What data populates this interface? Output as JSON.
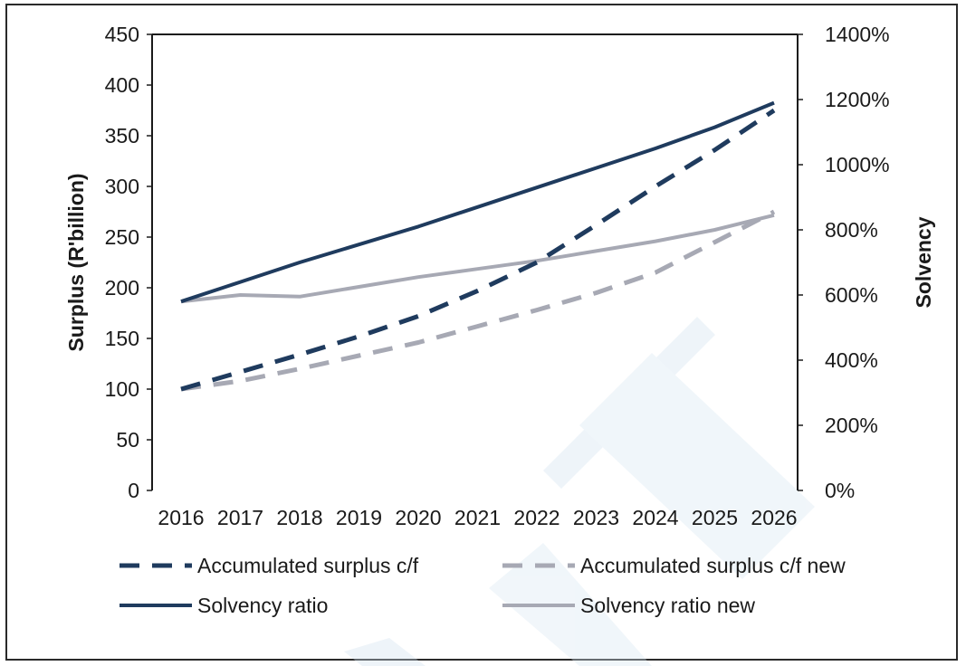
{
  "chart_data": {
    "type": "line",
    "title": "",
    "x": [
      "2016",
      "2017",
      "2018",
      "2019",
      "2020",
      "2021",
      "2022",
      "2023",
      "2024",
      "2025",
      "2026"
    ],
    "y_left": {
      "label": "Surplus (R'billion)",
      "ylim": [
        0,
        450
      ],
      "ticks": [
        "0",
        "50",
        "100",
        "150",
        "200",
        "250",
        "300",
        "350",
        "400",
        "450"
      ]
    },
    "y_right": {
      "label": "Solvency",
      "ylim": [
        0,
        1400
      ],
      "ticks": [
        "0%",
        "200%",
        "400%",
        "600%",
        "800%",
        "1000%",
        "1200%",
        "1400%"
      ]
    },
    "grid": false,
    "legend_position": "bottom",
    "series": [
      {
        "name": "Accumulated surplus c/f",
        "axis": "left",
        "style": "dashed",
        "color": "#1f3b5e",
        "values": [
          100,
          117,
          134,
          152,
          172,
          197,
          225,
          262,
          300,
          336,
          375
        ]
      },
      {
        "name": "Accumulated surplus c/f new",
        "axis": "left",
        "style": "dashed",
        "color": "#a7a9b4",
        "values": [
          100,
          108,
          120,
          133,
          146,
          162,
          178,
          195,
          215,
          245,
          275
        ]
      },
      {
        "name": "Solvency ratio",
        "axis": "right",
        "style": "solid",
        "color": "#1f3b5e",
        "values": [
          580,
          640,
          700,
          755,
          810,
          870,
          930,
          990,
          1050,
          1115,
          1190
        ]
      },
      {
        "name": "Solvency ratio new",
        "axis": "right",
        "style": "solid",
        "color": "#a7a9b4",
        "values": [
          580,
          600,
          595,
          625,
          655,
          680,
          705,
          735,
          765,
          800,
          845
        ]
      }
    ]
  }
}
